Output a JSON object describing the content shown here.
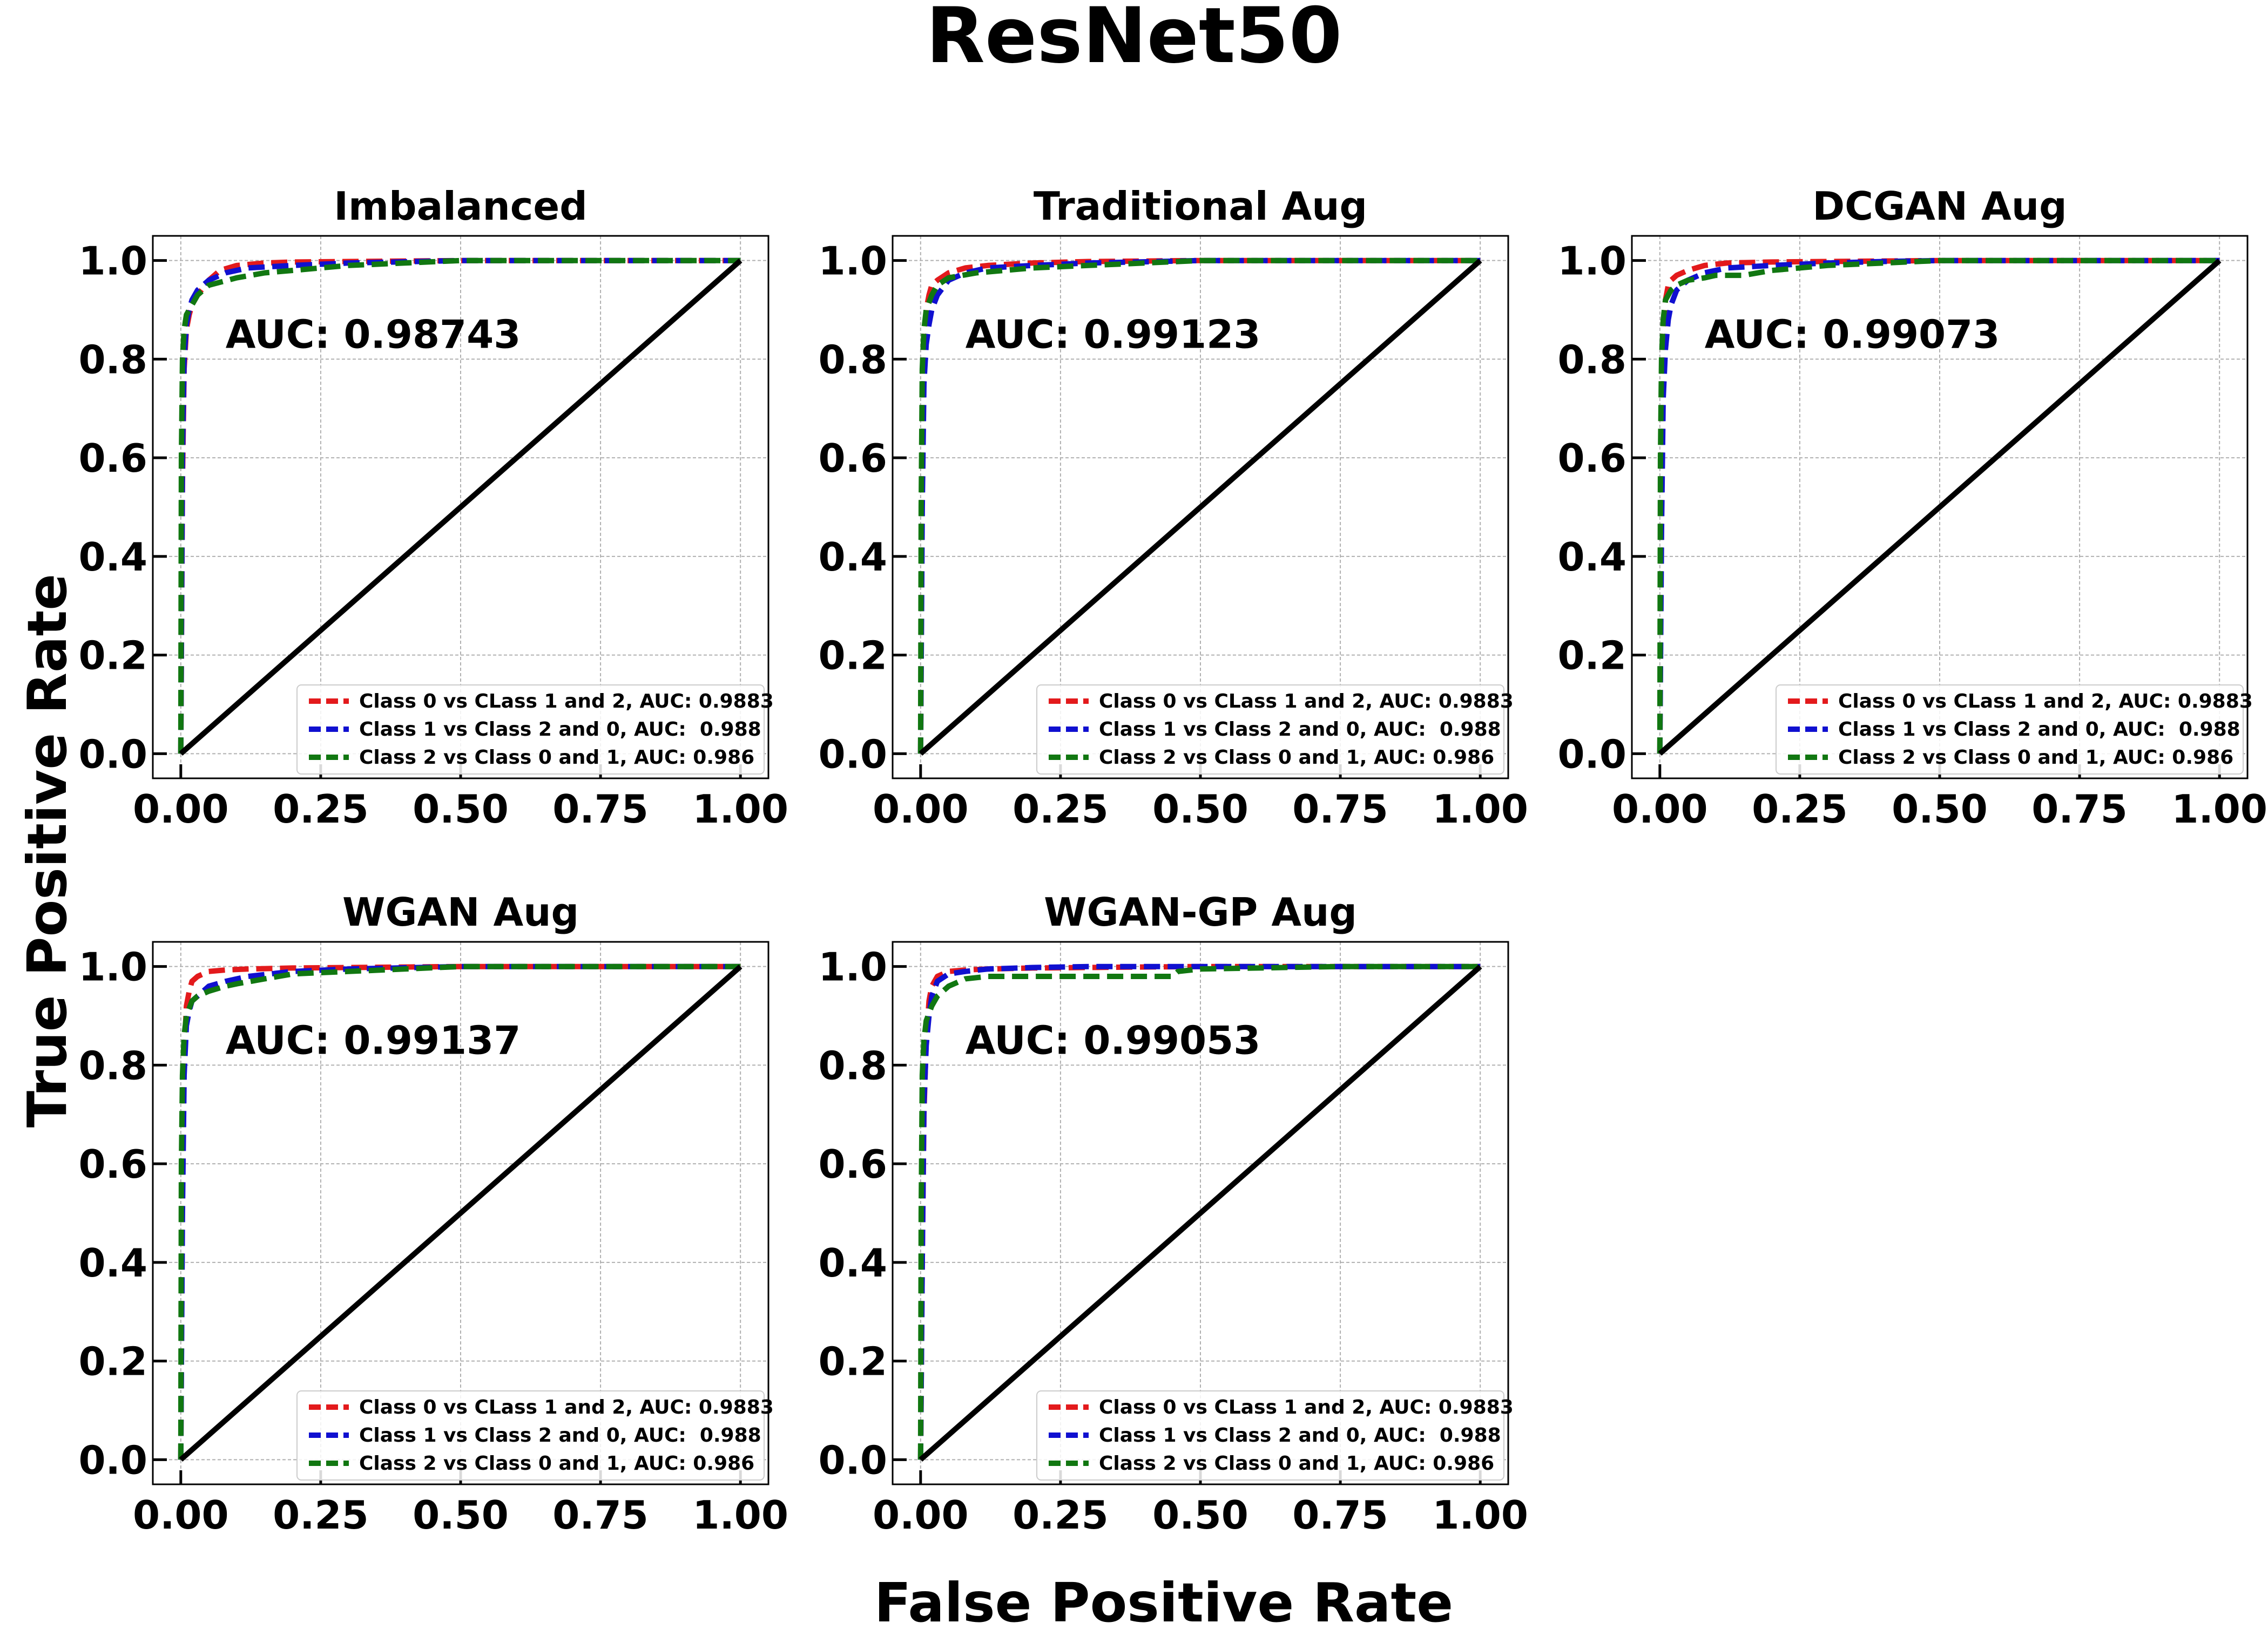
{
  "figure": {
    "title": "ResNet50",
    "xlabel": "False Positive Rate",
    "ylabel": "True Positive Rate"
  },
  "colors": {
    "class0": "#e31a1c",
    "class1": "#1010d0",
    "class2": "#117711",
    "diagonal": "#000000",
    "grid": "#b0b0b0"
  },
  "chart_data": [
    {
      "type": "line",
      "title": "Imbalanced",
      "annotation": "AUC: 0.98743",
      "xlim": [
        -0.05,
        1.05
      ],
      "ylim": [
        -0.05,
        1.05
      ],
      "xticks": [
        "0.00",
        "0.25",
        "0.50",
        "0.75",
        "1.00"
      ],
      "yticks": [
        "0.0",
        "0.2",
        "0.4",
        "0.6",
        "0.8",
        "1.0"
      ],
      "grid": true,
      "legend_position": "lower-right",
      "series": [
        {
          "name": "Class 0 vs CLass 1 and 2, AUC: 0.9883",
          "x": [
            0,
            0.003,
            0.006,
            0.01,
            0.015,
            0.02,
            0.03,
            0.05,
            0.07,
            0.1,
            0.15,
            0.2,
            0.3,
            0.5,
            0.75,
            1.0
          ],
          "y": [
            0,
            0.55,
            0.78,
            0.86,
            0.89,
            0.91,
            0.93,
            0.96,
            0.98,
            0.99,
            0.995,
            0.997,
            0.998,
            1.0,
            1.0,
            1.0
          ]
        },
        {
          "name": "Class 1 vs Class 2 and 0, AUC:  0.988",
          "x": [
            0,
            0.003,
            0.006,
            0.01,
            0.015,
            0.02,
            0.03,
            0.05,
            0.08,
            0.12,
            0.2,
            0.3,
            0.5,
            0.75,
            1.0
          ],
          "y": [
            0,
            0.6,
            0.8,
            0.87,
            0.9,
            0.92,
            0.94,
            0.96,
            0.975,
            0.985,
            0.99,
            0.995,
            1.0,
            1.0,
            1.0
          ]
        },
        {
          "name": "Class 2 vs Class 0 and 1, AUC: 0.986",
          "x": [
            0,
            0.001,
            0.003,
            0.006,
            0.01,
            0.02,
            0.03,
            0.05,
            0.1,
            0.15,
            0.2,
            0.3,
            0.4,
            0.5,
            0.75,
            1.0
          ],
          "y": [
            0,
            0.6,
            0.8,
            0.86,
            0.89,
            0.91,
            0.93,
            0.95,
            0.965,
            0.975,
            0.98,
            0.99,
            0.995,
            1.0,
            1.0,
            1.0
          ]
        },
        {
          "name": "",
          "x": [
            0,
            1
          ],
          "y": [
            0,
            1
          ]
        }
      ]
    },
    {
      "type": "line",
      "title": "Traditional Aug",
      "annotation": "AUC: 0.99123",
      "xlim": [
        -0.05,
        1.05
      ],
      "ylim": [
        -0.05,
        1.05
      ],
      "xticks": [
        "0.00",
        "0.25",
        "0.50",
        "0.75",
        "1.00"
      ],
      "yticks": [
        "0.0",
        "0.2",
        "0.4",
        "0.6",
        "0.8",
        "1.0"
      ],
      "grid": true,
      "legend_position": "lower-right",
      "series": [
        {
          "name": "Class 0 vs CLass 1 and 2, AUC: 0.9883",
          "x": [
            0,
            0.003,
            0.006,
            0.01,
            0.015,
            0.02,
            0.03,
            0.05,
            0.08,
            0.12,
            0.2,
            0.3,
            0.5,
            0.75,
            1.0
          ],
          "y": [
            0,
            0.6,
            0.82,
            0.9,
            0.93,
            0.95,
            0.96,
            0.975,
            0.985,
            0.99,
            0.995,
            0.998,
            1.0,
            1.0,
            1.0
          ]
        },
        {
          "name": "Class 1 vs Class 2 and 0, AUC:  0.988",
          "x": [
            0,
            0.003,
            0.006,
            0.01,
            0.015,
            0.02,
            0.03,
            0.05,
            0.08,
            0.12,
            0.2,
            0.3,
            0.5,
            0.75,
            1.0
          ],
          "y": [
            0,
            0.5,
            0.75,
            0.83,
            0.87,
            0.9,
            0.93,
            0.96,
            0.975,
            0.985,
            0.99,
            0.995,
            1.0,
            1.0,
            1.0
          ]
        },
        {
          "name": "Class 2 vs Class 0 and 1, AUC: 0.986",
          "x": [
            0,
            0.001,
            0.003,
            0.006,
            0.01,
            0.02,
            0.03,
            0.05,
            0.1,
            0.15,
            0.2,
            0.3,
            0.4,
            0.5,
            0.75,
            1.0
          ],
          "y": [
            0,
            0.5,
            0.78,
            0.86,
            0.9,
            0.93,
            0.95,
            0.965,
            0.975,
            0.98,
            0.985,
            0.99,
            0.995,
            1.0,
            1.0,
            1.0
          ]
        },
        {
          "name": "",
          "x": [
            0,
            1
          ],
          "y": [
            0,
            1
          ]
        }
      ]
    },
    {
      "type": "line",
      "title": "DCGAN Aug",
      "annotation": "AUC: 0.99073",
      "xlim": [
        -0.05,
        1.05
      ],
      "ylim": [
        -0.05,
        1.05
      ],
      "xticks": [
        "0.00",
        "0.25",
        "0.50",
        "0.75",
        "1.00"
      ],
      "yticks": [
        "0.0",
        "0.2",
        "0.4",
        "0.6",
        "0.8",
        "1.0"
      ],
      "grid": true,
      "legend_position": "lower-right",
      "series": [
        {
          "name": "Class 0 vs CLass 1 and 2, AUC: 0.9883",
          "x": [
            0,
            0.003,
            0.006,
            0.01,
            0.015,
            0.02,
            0.03,
            0.05,
            0.08,
            0.12,
            0.2,
            0.3,
            0.5,
            0.75,
            1.0
          ],
          "y": [
            0,
            0.6,
            0.85,
            0.92,
            0.95,
            0.96,
            0.97,
            0.98,
            0.99,
            0.995,
            0.997,
            0.998,
            1.0,
            1.0,
            1.0
          ]
        },
        {
          "name": "Class 1 vs Class 2 and 0, AUC:  0.988",
          "x": [
            0,
            0.003,
            0.006,
            0.01,
            0.015,
            0.02,
            0.03,
            0.05,
            0.08,
            0.12,
            0.2,
            0.3,
            0.4,
            0.5,
            0.75,
            1.0
          ],
          "y": [
            0,
            0.45,
            0.72,
            0.82,
            0.88,
            0.91,
            0.94,
            0.96,
            0.975,
            0.985,
            0.99,
            0.995,
            0.998,
            1.0,
            1.0,
            1.0
          ]
        },
        {
          "name": "Class 2 vs Class 0 and 1, AUC: 0.986",
          "x": [
            0,
            0.001,
            0.003,
            0.006,
            0.01,
            0.02,
            0.03,
            0.05,
            0.08,
            0.1,
            0.15,
            0.2,
            0.3,
            0.4,
            0.5,
            0.75,
            1.0
          ],
          "y": [
            0,
            0.6,
            0.8,
            0.88,
            0.92,
            0.94,
            0.95,
            0.96,
            0.965,
            0.97,
            0.97,
            0.98,
            0.99,
            0.995,
            1.0,
            1.0,
            1.0
          ]
        },
        {
          "name": "",
          "x": [
            0,
            1
          ],
          "y": [
            0,
            1
          ]
        }
      ]
    },
    {
      "type": "line",
      "title": "WGAN Aug",
      "annotation": "AUC: 0.99137",
      "xlim": [
        -0.05,
        1.05
      ],
      "ylim": [
        -0.05,
        1.05
      ],
      "xticks": [
        "0.00",
        "0.25",
        "0.50",
        "0.75",
        "1.00"
      ],
      "yticks": [
        "0.0",
        "0.2",
        "0.4",
        "0.6",
        "0.8",
        "1.0"
      ],
      "grid": true,
      "legend_position": "lower-right",
      "series": [
        {
          "name": "Class 0 vs CLass 1 and 2, AUC: 0.9883",
          "x": [
            0,
            0.003,
            0.006,
            0.01,
            0.015,
            0.02,
            0.03,
            0.05,
            0.08,
            0.12,
            0.2,
            0.3,
            0.5,
            0.75,
            1.0
          ],
          "y": [
            0,
            0.55,
            0.82,
            0.92,
            0.95,
            0.97,
            0.98,
            0.99,
            0.993,
            0.995,
            0.997,
            0.998,
            1.0,
            1.0,
            1.0
          ]
        },
        {
          "name": "Class 1 vs Class 2 and 0, AUC:  0.988",
          "x": [
            0,
            0.003,
            0.006,
            0.01,
            0.015,
            0.02,
            0.03,
            0.05,
            0.08,
            0.12,
            0.2,
            0.3,
            0.5,
            0.75,
            1.0
          ],
          "y": [
            0,
            0.5,
            0.78,
            0.88,
            0.91,
            0.93,
            0.94,
            0.96,
            0.97,
            0.98,
            0.99,
            0.995,
            1.0,
            1.0,
            1.0
          ]
        },
        {
          "name": "Class 2 vs Class 0 and 1, AUC: 0.986",
          "x": [
            0,
            0.001,
            0.003,
            0.006,
            0.01,
            0.02,
            0.03,
            0.05,
            0.08,
            0.1,
            0.15,
            0.2,
            0.3,
            0.4,
            0.5,
            0.75,
            1.0
          ],
          "y": [
            0,
            0.6,
            0.78,
            0.86,
            0.9,
            0.93,
            0.94,
            0.95,
            0.96,
            0.965,
            0.975,
            0.985,
            0.99,
            0.995,
            1.0,
            1.0,
            1.0
          ]
        },
        {
          "name": "",
          "x": [
            0,
            1
          ],
          "y": [
            0,
            1
          ]
        }
      ]
    },
    {
      "type": "line",
      "title": "WGAN-GP Aug",
      "annotation": "AUC: 0.99053",
      "xlim": [
        -0.05,
        1.05
      ],
      "ylim": [
        -0.05,
        1.05
      ],
      "xticks": [
        "0.00",
        "0.25",
        "0.50",
        "0.75",
        "1.00"
      ],
      "yticks": [
        "0.0",
        "0.2",
        "0.4",
        "0.6",
        "0.8",
        "1.0"
      ],
      "grid": true,
      "legend_position": "lower-right",
      "series": [
        {
          "name": "Class 0 vs CLass 1 and 2, AUC: 0.9883",
          "x": [
            0,
            0.003,
            0.006,
            0.01,
            0.015,
            0.02,
            0.03,
            0.05,
            0.08,
            0.12,
            0.2,
            0.3,
            0.5,
            0.75,
            1.0
          ],
          "y": [
            0,
            0.4,
            0.7,
            0.85,
            0.93,
            0.96,
            0.98,
            0.99,
            0.993,
            0.995,
            0.997,
            0.998,
            1.0,
            1.0,
            1.0
          ]
        },
        {
          "name": "Class 1 vs Class 2 and 0, AUC:  0.988",
          "x": [
            0,
            0.003,
            0.006,
            0.01,
            0.015,
            0.02,
            0.03,
            0.05,
            0.08,
            0.12,
            0.2,
            0.3,
            0.5,
            0.75,
            1.0
          ],
          "y": [
            0,
            0.4,
            0.72,
            0.84,
            0.9,
            0.94,
            0.97,
            0.985,
            0.99,
            0.995,
            0.998,
            1.0,
            1.0,
            1.0,
            1.0
          ]
        },
        {
          "name": "Class 2 vs Class 0 and 1, AUC: 0.986",
          "x": [
            0,
            0.001,
            0.003,
            0.006,
            0.01,
            0.02,
            0.03,
            0.05,
            0.08,
            0.12,
            0.2,
            0.3,
            0.4,
            0.45,
            0.46,
            0.5,
            0.75,
            1.0
          ],
          "y": [
            0,
            0.5,
            0.78,
            0.85,
            0.89,
            0.92,
            0.94,
            0.96,
            0.975,
            0.98,
            0.98,
            0.98,
            0.98,
            0.98,
            0.99,
            0.995,
            1.0,
            1.0
          ]
        },
        {
          "name": "",
          "x": [
            0,
            1
          ],
          "y": [
            0,
            1
          ]
        }
      ]
    }
  ]
}
